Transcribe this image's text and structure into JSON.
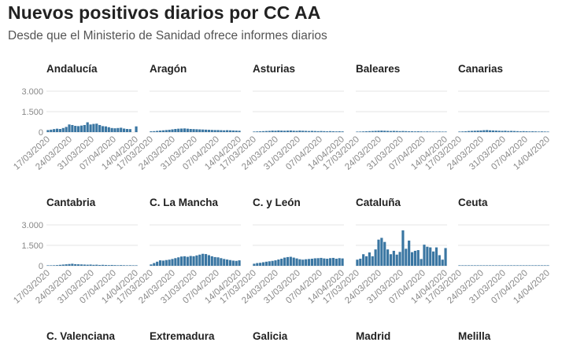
{
  "header": {
    "title": "Nuevos positivos diarios por CC AA",
    "subtitle": "Desde que el Ministerio de Sanidad ofrece informes diarios"
  },
  "colors": {
    "bar": "#3a76a2",
    "grid": "#e6e6e6",
    "axis_text": "#888888",
    "panel_title": "#222222"
  },
  "chart_data": [
    {
      "type": "bar",
      "title": "Andalucía",
      "x_tick_labels": [
        "17/03/2020",
        "24/03/2020",
        "31/03/2020",
        "07/04/2020",
        "14/04/2020"
      ],
      "y_tick_labels": [
        "0",
        "1.500",
        "3.000"
      ],
      "ylim": [
        0,
        3000
      ],
      "values": [
        150,
        180,
        220,
        250,
        230,
        300,
        380,
        560,
        520,
        460,
        440,
        480,
        520,
        720,
        560,
        600,
        620,
        520,
        440,
        420,
        360,
        300,
        280,
        300,
        320,
        260,
        230,
        220,
        0,
        420
      ]
    },
    {
      "type": "bar",
      "title": "Aragón",
      "x_tick_labels": [
        "17/03/2020",
        "24/03/2020",
        "31/03/2020",
        "07/04/2020",
        "14/04/2020"
      ],
      "y_tick_labels": [
        "0",
        "1.500",
        "3.000"
      ],
      "ylim": [
        0,
        3000
      ],
      "values": [
        60,
        70,
        90,
        110,
        130,
        150,
        170,
        200,
        230,
        250,
        260,
        270,
        250,
        230,
        220,
        210,
        200,
        190,
        180,
        170,
        160,
        150,
        150,
        140,
        130,
        140,
        130,
        120,
        110,
        100
      ]
    },
    {
      "type": "bar",
      "title": "Asturias",
      "x_tick_labels": [
        "17/03/2020",
        "24/03/2020",
        "31/03/2020",
        "07/04/2020",
        "14/04/2020"
      ],
      "y_tick_labels": [
        "0",
        "1.500",
        "3.000"
      ],
      "ylim": [
        0,
        3000
      ],
      "values": [
        40,
        50,
        60,
        70,
        80,
        90,
        110,
        100,
        120,
        110,
        100,
        110,
        120,
        100,
        90,
        110,
        100,
        90,
        80,
        90,
        80,
        70,
        80,
        70,
        60,
        70,
        60,
        50,
        60,
        50
      ]
    },
    {
      "type": "bar",
      "title": "Baleares",
      "x_tick_labels": [
        "17/03/2020",
        "24/03/2020",
        "31/03/2020",
        "07/04/2020",
        "14/04/2020"
      ],
      "y_tick_labels": [
        "0",
        "1.500",
        "3.000"
      ],
      "ylim": [
        0,
        3000
      ],
      "values": [
        30,
        40,
        50,
        60,
        70,
        80,
        90,
        100,
        110,
        100,
        90,
        80,
        90,
        80,
        70,
        80,
        70,
        60,
        60,
        50,
        60,
        50,
        40,
        50,
        40,
        40,
        30,
        40,
        30,
        30
      ]
    },
    {
      "type": "bar",
      "title": "Canarias",
      "x_tick_labels": [
        "17/03/2020",
        "24/03/2020",
        "31/03/2020",
        "07/04/2020",
        "14/04/2020"
      ],
      "y_tick_labels": [
        "0",
        "1.500",
        "3.000"
      ],
      "ylim": [
        0,
        3000
      ],
      "values": [
        40,
        50,
        60,
        80,
        90,
        100,
        110,
        120,
        140,
        150,
        130,
        120,
        110,
        100,
        90,
        100,
        80,
        90,
        80,
        70,
        60,
        70,
        60,
        50,
        60,
        50,
        40,
        50,
        40,
        30
      ]
    },
    {
      "type": "bar",
      "title": "Cantabria",
      "x_tick_labels": [
        "17/03/2020",
        "24/03/2020",
        "31/03/2020",
        "07/04/2020",
        "14/04/2020"
      ],
      "y_tick_labels": [
        "0",
        "1.500",
        "3.000"
      ],
      "ylim": [
        0,
        3000
      ],
      "values": [
        20,
        30,
        40,
        50,
        70,
        90,
        110,
        130,
        150,
        120,
        110,
        100,
        90,
        80,
        90,
        70,
        80,
        60,
        70,
        60,
        50,
        60,
        50,
        40,
        50,
        40,
        30,
        40,
        30,
        30
      ]
    },
    {
      "type": "bar",
      "title": "C. La Mancha",
      "x_tick_labels": [
        "17/03/2020",
        "24/03/2020",
        "31/03/2020",
        "07/04/2020",
        "14/04/2020"
      ],
      "y_tick_labels": [
        "0",
        "1.500",
        "3.000"
      ],
      "ylim": [
        0,
        3000
      ],
      "values": [
        100,
        200,
        300,
        400,
        380,
        420,
        450,
        500,
        560,
        620,
        680,
        700,
        660,
        720,
        700,
        760,
        820,
        880,
        860,
        780,
        700,
        640,
        620,
        560,
        500,
        460,
        420,
        380,
        360,
        400
      ]
    },
    {
      "type": "bar",
      "title": "C. y León",
      "x_tick_labels": [
        "17/03/2020",
        "24/03/2020",
        "31/03/2020",
        "07/04/2020",
        "14/04/2020"
      ],
      "y_tick_labels": [
        "0",
        "1.500",
        "3.000"
      ],
      "ylim": [
        0,
        3000
      ],
      "values": [
        150,
        200,
        220,
        260,
        300,
        330,
        360,
        400,
        460,
        520,
        600,
        640,
        660,
        600,
        540,
        480,
        450,
        480,
        500,
        520,
        550,
        560,
        580,
        540,
        520,
        560,
        580,
        520,
        560,
        540
      ]
    },
    {
      "type": "bar",
      "title": "Cataluña",
      "x_tick_labels": [
        "17/03/2020",
        "24/03/2020",
        "31/03/2020",
        "07/04/2020",
        "14/04/2020"
      ],
      "y_tick_labels": [
        "0",
        "1.500",
        "3.000"
      ],
      "ylim": [
        0,
        3000
      ],
      "values": [
        450,
        520,
        850,
        700,
        980,
        700,
        1200,
        1920,
        2050,
        1750,
        1200,
        850,
        1100,
        820,
        1020,
        2600,
        1250,
        1850,
        1000,
        1100,
        1150,
        500,
        1550,
        1400,
        1350,
        1050,
        1350,
        780,
        450,
        1300
      ]
    },
    {
      "type": "bar",
      "title": "Ceuta",
      "x_tick_labels": [
        "17/03/2020",
        "24/03/2020",
        "31/03/2020",
        "07/04/2020",
        "14/04/2020"
      ],
      "y_tick_labels": [
        "0",
        "1.500",
        "3.000"
      ],
      "ylim": [
        0,
        3000
      ],
      "values": [
        2,
        3,
        3,
        4,
        5,
        5,
        6,
        8,
        10,
        12,
        10,
        8,
        7,
        6,
        6,
        5,
        5,
        4,
        4,
        4,
        3,
        3,
        3,
        2,
        2,
        2,
        2,
        2,
        1,
        1
      ]
    },
    {
      "type": "bar",
      "title": "C. Valenciana",
      "values": []
    },
    {
      "type": "bar",
      "title": "Extremadura",
      "values": []
    },
    {
      "type": "bar",
      "title": "Galicia",
      "values": []
    },
    {
      "type": "bar",
      "title": "Madrid",
      "values": []
    },
    {
      "type": "bar",
      "title": "Melilla",
      "values": []
    }
  ]
}
